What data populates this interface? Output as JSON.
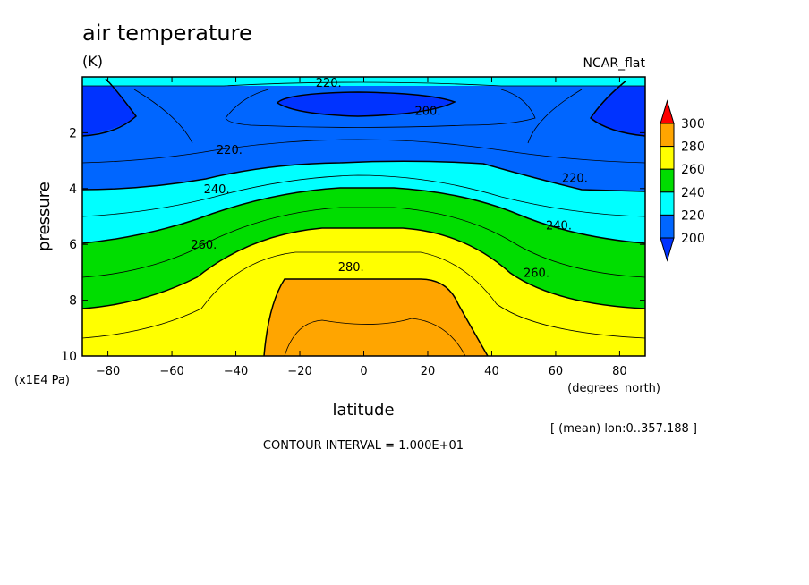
{
  "chart_data": {
    "type": "heatmap",
    "title": "air temperature",
    "subtitle": "(K)",
    "colormap_name": "NCAR_flat",
    "xlabel": "latitude",
    "xunits": "(degrees_north)",
    "ylabel": "pressure",
    "yunits": "(x1E4 Pa)",
    "xlim": [
      -88,
      88
    ],
    "ylim": [
      10,
      0
    ],
    "xticks": [
      -80,
      -60,
      -40,
      -20,
      0,
      20,
      40,
      60,
      80
    ],
    "yticks": [
      2,
      4,
      6,
      8,
      10
    ],
    "footnote": "[ (mean) lon:0..357.188 ]",
    "contour_interval_text": "CONTOUR INTERVAL = 1.000E+01",
    "colorbar": {
      "levels": [
        200,
        220,
        240,
        260,
        280,
        300
      ],
      "colors": [
        "#0033ff",
        "#0066ff",
        "#00ffff",
        "#00dd00",
        "#ffff00",
        "#ffa500",
        "#ff0000"
      ]
    },
    "contour_labels": [
      {
        "text": "220.",
        "lat": -11,
        "p": 0.2
      },
      {
        "text": "200.",
        "lat": 20,
        "p": 1.2
      },
      {
        "text": "220.",
        "lat": -42,
        "p": 2.6
      },
      {
        "text": "240.",
        "lat": -46,
        "p": 4.0
      },
      {
        "text": "260.",
        "lat": -50,
        "p": 6.0
      },
      {
        "text": "280.",
        "lat": -4,
        "p": 6.8
      },
      {
        "text": "220.",
        "lat": 66,
        "p": 3.6
      },
      {
        "text": "240.",
        "lat": 61,
        "p": 5.3
      },
      {
        "text": "260.",
        "lat": 54,
        "p": 7.0
      }
    ]
  }
}
